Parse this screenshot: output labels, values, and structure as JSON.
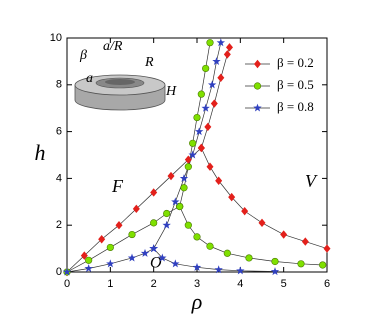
{
  "chart_data": {
    "type": "line",
    "x_label": "ρ",
    "y_label": "h",
    "xlim": [
      0,
      6
    ],
    "ylim": [
      0,
      10
    ],
    "xticks": [
      0,
      1,
      2,
      3,
      4,
      5,
      6
    ],
    "yticks": [
      0,
      2,
      4,
      6,
      8,
      10
    ],
    "legend": "upper right",
    "annotations": [
      "F",
      "V",
      "O"
    ],
    "inset_labels": [
      "β",
      "a/R",
      "R",
      "a",
      "H"
    ],
    "series": [
      {
        "name": "β = 0.2",
        "color": "#e3201b",
        "marker": "diamond",
        "x": [
          0,
          0.4,
          0.8,
          1.2,
          1.6,
          2.0,
          2.4,
          2.8,
          3.1,
          null,
          3.1,
          3.3,
          3.5,
          3.8,
          4.1,
          4.5,
          5.0,
          5.5,
          6.0,
          null,
          3.1,
          3.25,
          3.4,
          3.55,
          3.7,
          3.75
        ],
        "values": [
          0,
          0.7,
          1.4,
          2.0,
          2.7,
          3.4,
          4.1,
          4.8,
          5.3,
          null,
          5.3,
          4.5,
          3.9,
          3.2,
          2.6,
          2.1,
          1.6,
          1.3,
          1.0,
          null,
          5.3,
          6.2,
          7.2,
          8.3,
          9.3,
          9.6
        ]
      },
      {
        "name": "β = 0.5",
        "color": "#7fe000",
        "marker": "circle",
        "x": [
          0,
          0.5,
          1.0,
          1.5,
          2.0,
          2.3,
          2.6,
          null,
          2.6,
          2.8,
          3.0,
          3.3,
          3.7,
          4.2,
          4.8,
          5.4,
          5.9,
          null,
          2.6,
          2.7,
          2.8,
          2.9,
          3.0,
          3.1,
          3.2,
          3.3
        ],
        "values": [
          0,
          0.5,
          1.05,
          1.6,
          2.1,
          2.5,
          2.8,
          null,
          2.8,
          2.0,
          1.5,
          1.1,
          0.8,
          0.6,
          0.45,
          0.35,
          0.3,
          null,
          2.8,
          3.6,
          4.5,
          5.5,
          6.6,
          7.6,
          8.7,
          9.8
        ]
      },
      {
        "name": "β = 0.8",
        "color": "#3040c0",
        "marker": "star",
        "x": [
          0,
          0.5,
          1.0,
          1.5,
          1.8,
          2.0,
          null,
          2.0,
          2.2,
          2.5,
          3.0,
          3.5,
          4.0,
          4.8,
          null,
          2.0,
          2.3,
          2.5,
          2.7,
          2.9,
          3.05,
          3.2,
          3.35,
          3.45,
          3.55
        ],
        "values": [
          0,
          0.15,
          0.35,
          0.6,
          0.8,
          1.0,
          null,
          1.0,
          0.6,
          0.35,
          0.2,
          0.1,
          0.05,
          0.02,
          null,
          1.0,
          2.0,
          3.0,
          4.0,
          5.0,
          6.0,
          7.0,
          8.0,
          9.0,
          9.8
        ]
      }
    ]
  }
}
